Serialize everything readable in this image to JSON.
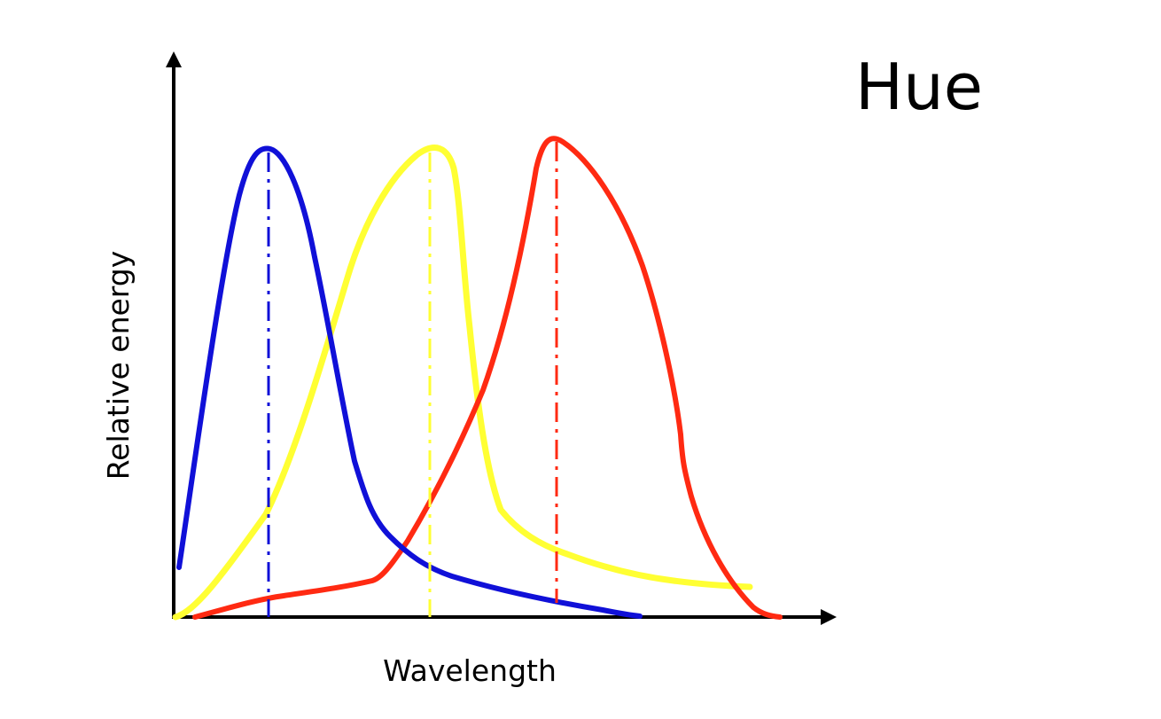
{
  "title": "Hue",
  "diagram": {
    "xlabel": "Wavelength",
    "ylabel": "Relative energy",
    "colors": {
      "axis": "#000000",
      "blue": "#1010d8",
      "yellow": "#ffff33",
      "red": "#ff2a12"
    },
    "curves": [
      {
        "id": "blue",
        "color": "#1010d8",
        "peak_marker": "dash-dot"
      },
      {
        "id": "yellow",
        "color": "#ffff33",
        "peak_marker": "dash-dot"
      },
      {
        "id": "red",
        "color": "#ff2a12",
        "peak_marker": "dash-dot"
      }
    ]
  }
}
